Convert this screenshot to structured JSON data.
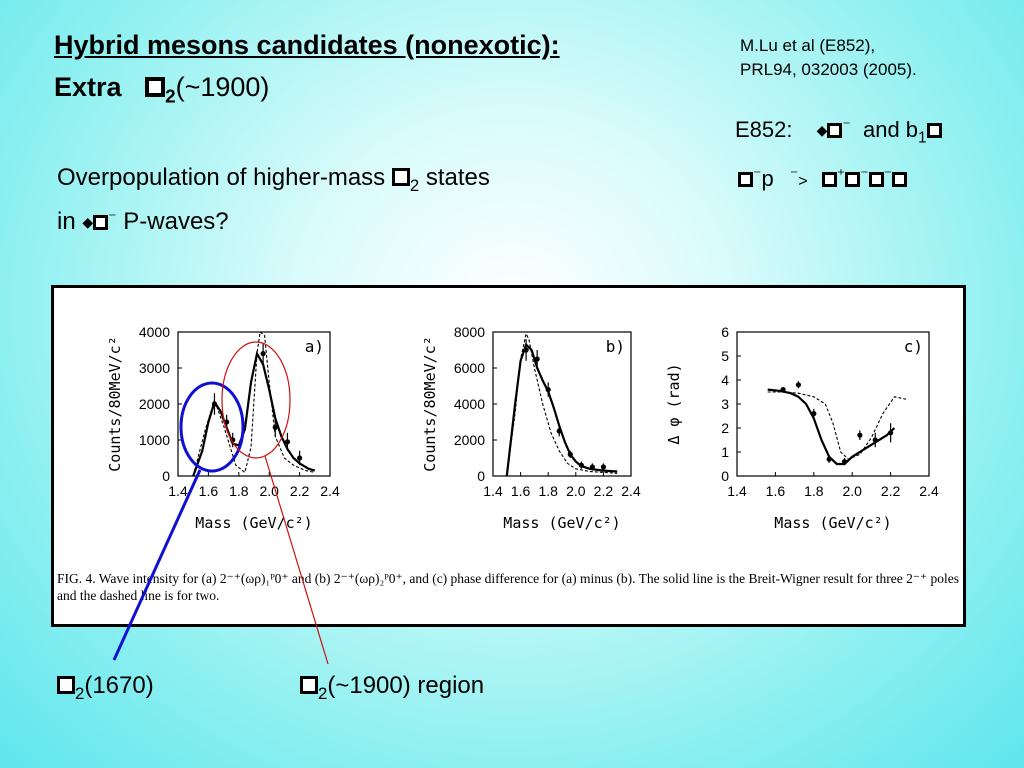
{
  "slide": {
    "title_line1": "Hybrid mesons candidates (nonexotic):",
    "title_line2_prefix": "Extra",
    "title_line2_sub": "2",
    "title_line2_suffix": "(~1900)",
    "reference_line1": "M.Lu et al (E852),",
    "reference_line2": "PRL94, 032003 (2005).",
    "e852_prefix": "E852:",
    "e852_and": "and b",
    "e852_sub": "1",
    "reaction_p": "p",
    "overpop_line1_prefix": "Overpopulation of higher-mass",
    "overpop_line1_sub": "2",
    "overpop_line1_suffix": "states",
    "overpop_line2_prefix": "in",
    "overpop_line2_suffix": "P-waves?",
    "label_left_sub": "2",
    "label_left_text": "(1670)",
    "label_right_sub": "2",
    "label_right_text": "(~1900) region",
    "callout_left_color": "#1010d0",
    "callout_right_color": "#d01010"
  },
  "figure": {
    "caption": "FIG. 4.   Wave intensity for (a) 2⁻⁺(ωρ)₁ᴾ0⁺ and (b) 2⁻⁺(ωρ)₂ᴾ0⁺, and (c) phase difference for (a) minus (b). The solid line is the Breit-Wigner result for three 2⁻⁺ poles and the dashed line is for two.",
    "xlabel": "Mass (GeV/c²)",
    "panel_a_label": "a)",
    "panel_b_label": "b)",
    "panel_c_label": "c)"
  },
  "chart_data": [
    {
      "type": "scatter",
      "panel": "a)",
      "xlabel": "Mass (GeV/c²)",
      "ylabel": "Counts/80MeV/c²",
      "xlim": [
        1.4,
        2.4
      ],
      "ylim": [
        0,
        4000
      ],
      "xticks": [
        "1.4",
        "1.6",
        "1.8",
        "2.0",
        "2.2",
        "2.4"
      ],
      "yticks": [
        "0",
        "1000",
        "2000",
        "3000",
        "4000"
      ],
      "series": [
        {
          "kind": "points",
          "x": [
            1.64,
            1.72,
            1.76,
            1.96,
            2.04,
            2.12,
            2.2
          ],
          "y": [
            2000,
            1500,
            1000,
            3400,
            1350,
            950,
            500
          ],
          "err": [
            300,
            200,
            200,
            300,
            250,
            250,
            200
          ]
        },
        {
          "kind": "solid",
          "x": [
            1.5,
            1.56,
            1.6,
            1.64,
            1.68,
            1.72,
            1.76,
            1.8,
            1.84,
            1.88,
            1.92,
            1.96,
            2.0,
            2.04,
            2.08,
            2.12,
            2.16,
            2.2,
            2.26,
            2.3
          ],
          "y": [
            0,
            700,
            1500,
            2050,
            1800,
            1350,
            900,
            850,
            1300,
            2600,
            3400,
            3100,
            2400,
            1600,
            1100,
            750,
            500,
            350,
            200,
            150
          ]
        },
        {
          "kind": "dashed",
          "x": [
            1.5,
            1.58,
            1.64,
            1.7,
            1.78,
            1.84,
            1.88,
            1.92,
            1.94,
            1.97,
            2.0,
            2.04,
            2.1,
            2.16,
            2.24,
            2.3
          ],
          "y": [
            0,
            1300,
            2100,
            1400,
            300,
            100,
            800,
            3400,
            4000,
            3900,
            2600,
            1100,
            500,
            300,
            150,
            100
          ]
        }
      ]
    },
    {
      "type": "scatter",
      "panel": "b)",
      "xlabel": "Mass (GeV/c²)",
      "ylabel": "Counts/80MeV/c²",
      "xlim": [
        1.4,
        2.4
      ],
      "ylim": [
        0,
        8000
      ],
      "xticks": [
        "1.4",
        "1.6",
        "1.8",
        "2.0",
        "2.2",
        "2.4"
      ],
      "yticks": [
        "0",
        "2000",
        "4000",
        "6000",
        "8000"
      ],
      "series": [
        {
          "kind": "points",
          "x": [
            1.64,
            1.72,
            1.8,
            1.88,
            1.96,
            2.04,
            2.12,
            2.2
          ],
          "y": [
            7000,
            6500,
            4800,
            2500,
            1200,
            600,
            500,
            500
          ],
          "err": [
            600,
            500,
            400,
            300,
            200,
            200,
            200,
            200
          ]
        },
        {
          "kind": "solid",
          "x": [
            1.5,
            1.56,
            1.6,
            1.64,
            1.68,
            1.72,
            1.76,
            1.8,
            1.84,
            1.88,
            1.92,
            1.96,
            2.0,
            2.04,
            2.1,
            2.2,
            2.3
          ],
          "y": [
            0,
            4000,
            6400,
            7300,
            7000,
            6000,
            5300,
            4700,
            3800,
            2800,
            1900,
            1200,
            800,
            550,
            400,
            300,
            250
          ]
        },
        {
          "kind": "dashed",
          "x": [
            1.5,
            1.56,
            1.6,
            1.64,
            1.66,
            1.7,
            1.76,
            1.82,
            1.88,
            1.94,
            2.0,
            2.1,
            2.2,
            2.3
          ],
          "y": [
            0,
            3500,
            6500,
            7900,
            7600,
            6000,
            4000,
            2400,
            1400,
            700,
            400,
            250,
            200,
            150
          ]
        }
      ]
    },
    {
      "type": "scatter",
      "panel": "c)",
      "xlabel": "Mass (GeV/c²)",
      "ylabel": "Δ φ (rad)",
      "xlim": [
        1.4,
        2.4
      ],
      "ylim": [
        0,
        6
      ],
      "xticks": [
        "1.4",
        "1.6",
        "1.8",
        "2.0",
        "2.2",
        "2.4"
      ],
      "yticks": [
        "0",
        "1",
        "2",
        "3",
        "4",
        "5",
        "6"
      ],
      "series": [
        {
          "kind": "points",
          "x": [
            1.64,
            1.72,
            1.8,
            1.88,
            1.96,
            2.04,
            2.12,
            2.2
          ],
          "y": [
            3.6,
            3.8,
            2.6,
            0.7,
            0.6,
            1.7,
            1.5,
            1.8
          ],
          "err": [
            0.1,
            0.15,
            0.2,
            0.15,
            0.15,
            0.2,
            0.3,
            0.4
          ]
        },
        {
          "kind": "solid",
          "x": [
            1.56,
            1.62,
            1.68,
            1.72,
            1.76,
            1.8,
            1.84,
            1.88,
            1.92,
            1.96,
            2.0,
            2.06,
            2.12,
            2.18,
            2.22
          ],
          "y": [
            3.6,
            3.55,
            3.45,
            3.3,
            3.0,
            2.4,
            1.5,
            0.8,
            0.5,
            0.5,
            0.8,
            1.1,
            1.4,
            1.7,
            2.0
          ]
        },
        {
          "kind": "dashed",
          "x": [
            1.56,
            1.64,
            1.72,
            1.8,
            1.86,
            1.9,
            1.94,
            1.98,
            2.04,
            2.1,
            2.16,
            2.22,
            2.28
          ],
          "y": [
            3.5,
            3.5,
            3.45,
            3.3,
            3.0,
            2.2,
            1.0,
            0.7,
            0.9,
            1.6,
            2.6,
            3.3,
            3.2
          ]
        }
      ]
    }
  ]
}
